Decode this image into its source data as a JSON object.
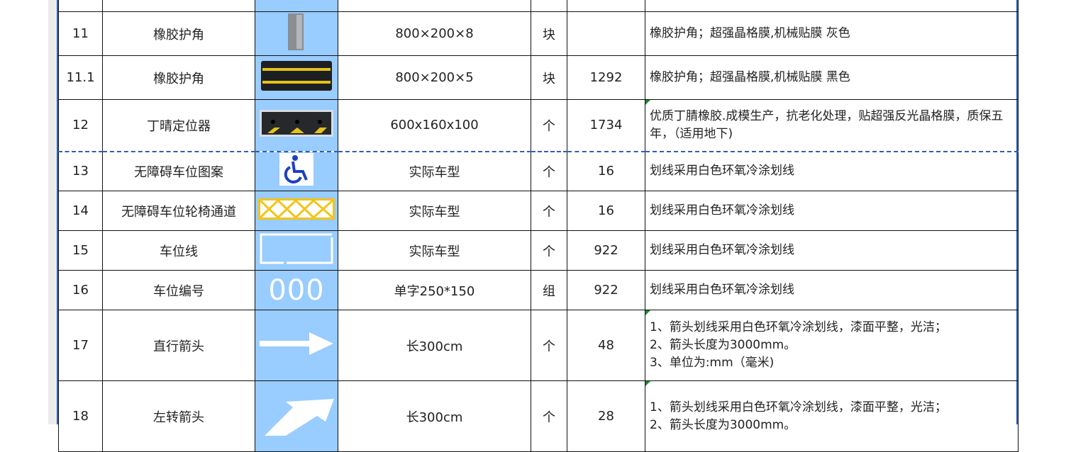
{
  "rows": [
    {
      "no": "11",
      "name": "橡胶护角",
      "icon": "gray-corner-guard",
      "spec": "800×200×8",
      "unit": "块",
      "qty": "",
      "desc": [
        "橡胶护角；超强晶格膜,机械贴膜 灰色"
      ]
    },
    {
      "no": "11.1",
      "name": "橡胶护角",
      "icon": "black-yellow-corner-guard",
      "spec": "800×200×5",
      "unit": "块",
      "qty": "1292",
      "desc": [
        "橡胶护角；超强晶格膜,机械贴膜 黑色"
      ]
    },
    {
      "no": "12",
      "name": "丁晴定位器",
      "icon": "wheel-stopper",
      "spec": "600x160x100",
      "unit": "个",
      "qty": "1734",
      "desc": [
        "优质丁腈橡胶.成模生产，抗老化处理，贴超强反光晶格膜，质保五年，（适用地下)"
      ]
    },
    {
      "no": "13",
      "name": "无障碍车位图案",
      "icon": "wheelchair",
      "spec": "实际车型",
      "unit": "个",
      "qty": "16",
      "desc": [
        "划线采用白色环氧冷涂划线"
      ]
    },
    {
      "no": "14",
      "name": "无障碍车位轮椅通道",
      "icon": "yellow-crosshatch",
      "spec": "实际车型",
      "unit": "个",
      "qty": "16",
      "desc": [
        "划线采用白色环氧冷涂划线"
      ]
    },
    {
      "no": "15",
      "name": "车位线",
      "icon": "parking-line",
      "spec": "实际车型",
      "unit": "个",
      "qty": "922",
      "desc": [
        "划线采用白色环氧冷涂划线"
      ]
    },
    {
      "no": "16",
      "name": "车位编号",
      "icon": "number-000",
      "icon_text": "000",
      "spec": "单字250*150",
      "unit": "组",
      "qty": "922",
      "desc": [
        "划线采用白色环氧冷涂划线"
      ]
    },
    {
      "no": "17",
      "name": "直行箭头",
      "icon": "straight-arrow",
      "spec": "长300cm",
      "unit": "个",
      "qty": "48",
      "desc": [
        "1、箭头划线采用白色环氧冷涂划线，漆面平整，光洁；",
        "2、箭头长度为3000mm。",
        "3、单位为:mm（毫米)"
      ]
    },
    {
      "no": "18",
      "name": "左转箭头",
      "icon": "left-turn-arrow",
      "spec": "长300cm",
      "unit": "个",
      "qty": "28",
      "desc": [
        "1、箭头划线采用白色环氧冷涂划线，漆面平整，光洁；",
        "2、箭头长度为3000mm。"
      ]
    }
  ]
}
